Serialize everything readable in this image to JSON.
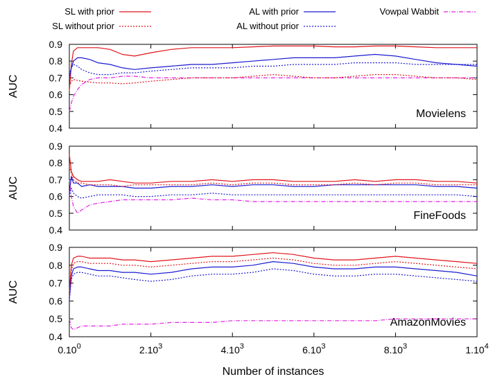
{
  "chart_data": {
    "type": "line",
    "xlabel": "Number of instances",
    "x_range": [
      0,
      10000
    ],
    "x_tick_values": [
      0,
      2000,
      4000,
      6000,
      8000,
      10000
    ],
    "x_tick_labels": [
      {
        "base": "0.10",
        "exp": "0"
      },
      {
        "base": "2.10",
        "exp": "3"
      },
      {
        "base": "4.10",
        "exp": "3"
      },
      {
        "base": "6.10",
        "exp": "3"
      },
      {
        "base": "8.10",
        "exp": "3"
      },
      {
        "base": "1.10",
        "exp": "4"
      }
    ],
    "ylabel": "AUC",
    "ylim": [
      0.4,
      0.9
    ],
    "y_ticks": [
      "0.4",
      "0.5",
      "0.6",
      "0.7",
      "0.8",
      "0.9"
    ],
    "legend": [
      {
        "name": "SL with prior",
        "color": "#e0141a",
        "dash": "solid"
      },
      {
        "name": "AL with prior",
        "color": "#1a1ad0",
        "dash": "solid"
      },
      {
        "name": "Vowpal Wabbit",
        "color": "#e020e0",
        "dash": "dashdot"
      },
      {
        "name": "SL without prior",
        "color": "#e0141a",
        "dash": "dotted"
      },
      {
        "name": "AL without prior",
        "color": "#1a1ad0",
        "dash": "dotted"
      }
    ],
    "x_points": [
      0,
      50,
      100,
      200,
      300,
      500,
      700,
      1000,
      1300,
      1600,
      2000,
      2500,
      3000,
      3500,
      4000,
      4500,
      5000,
      5500,
      6000,
      6500,
      7000,
      7500,
      8000,
      8500,
      9000,
      9500,
      10000
    ],
    "panels": [
      {
        "label": "Movielens",
        "series": [
          {
            "name": "SL with prior",
            "values": [
              0.62,
              0.78,
              0.86,
              0.88,
              0.88,
              0.88,
              0.88,
              0.87,
              0.84,
              0.83,
              0.85,
              0.87,
              0.88,
              0.88,
              0.88,
              0.885,
              0.89,
              0.89,
              0.89,
              0.885,
              0.885,
              0.89,
              0.89,
              0.885,
              0.88,
              0.88,
              0.88
            ]
          },
          {
            "name": "AL with prior",
            "values": [
              0.7,
              0.76,
              0.8,
              0.82,
              0.82,
              0.81,
              0.79,
              0.78,
              0.76,
              0.75,
              0.76,
              0.77,
              0.78,
              0.78,
              0.79,
              0.8,
              0.81,
              0.82,
              0.82,
              0.82,
              0.83,
              0.84,
              0.83,
              0.81,
              0.79,
              0.78,
              0.77
            ]
          },
          {
            "name": "Vowpal Wabbit",
            "values": [
              0.5,
              0.55,
              0.59,
              0.63,
              0.66,
              0.69,
              0.7,
              0.7,
              0.71,
              0.71,
              0.7,
              0.7,
              0.7,
              0.7,
              0.7,
              0.7,
              0.7,
              0.7,
              0.7,
              0.7,
              0.7,
              0.7,
              0.7,
              0.7,
              0.7,
              0.7,
              0.7
            ]
          },
          {
            "name": "SL without prior",
            "values": [
              0.65,
              0.68,
              0.69,
              0.685,
              0.68,
              0.675,
              0.67,
              0.67,
              0.665,
              0.67,
              0.68,
              0.69,
              0.7,
              0.7,
              0.7,
              0.71,
              0.72,
              0.71,
              0.7,
              0.7,
              0.71,
              0.72,
              0.72,
              0.71,
              0.7,
              0.7,
              0.69
            ]
          },
          {
            "name": "AL without prior",
            "values": [
              0.72,
              0.76,
              0.78,
              0.77,
              0.75,
              0.73,
              0.72,
              0.72,
              0.73,
              0.73,
              0.74,
              0.75,
              0.76,
              0.76,
              0.76,
              0.77,
              0.77,
              0.78,
              0.78,
              0.78,
              0.79,
              0.79,
              0.79,
              0.78,
              0.78,
              0.78,
              0.78
            ]
          }
        ]
      },
      {
        "label": "FineFoods",
        "series": [
          {
            "name": "SL with prior",
            "values": [
              0.85,
              0.75,
              0.72,
              0.7,
              0.69,
              0.69,
              0.69,
              0.7,
              0.69,
              0.68,
              0.68,
              0.69,
              0.69,
              0.7,
              0.69,
              0.7,
              0.7,
              0.69,
              0.69,
              0.69,
              0.7,
              0.69,
              0.7,
              0.7,
              0.69,
              0.69,
              0.68
            ]
          },
          {
            "name": "AL with prior",
            "values": [
              0.62,
              0.72,
              0.68,
              0.68,
              0.66,
              0.67,
              0.66,
              0.66,
              0.66,
              0.65,
              0.65,
              0.66,
              0.66,
              0.67,
              0.66,
              0.67,
              0.67,
              0.66,
              0.66,
              0.67,
              0.67,
              0.67,
              0.67,
              0.67,
              0.66,
              0.66,
              0.65
            ]
          },
          {
            "name": "Vowpal Wabbit",
            "values": [
              0.7,
              0.6,
              0.54,
              0.5,
              0.52,
              0.55,
              0.56,
              0.57,
              0.58,
              0.58,
              0.58,
              0.58,
              0.59,
              0.58,
              0.58,
              0.57,
              0.57,
              0.57,
              0.57,
              0.57,
              0.57,
              0.57,
              0.57,
              0.57,
              0.57,
              0.57,
              0.57
            ]
          },
          {
            "name": "SL without prior",
            "values": [
              0.78,
              0.74,
              0.7,
              0.68,
              0.68,
              0.67,
              0.67,
              0.67,
              0.66,
              0.67,
              0.67,
              0.67,
              0.67,
              0.68,
              0.67,
              0.68,
              0.68,
              0.67,
              0.67,
              0.67,
              0.68,
              0.67,
              0.68,
              0.68,
              0.67,
              0.67,
              0.67
            ]
          },
          {
            "name": "AL without prior",
            "values": [
              0.6,
              0.65,
              0.62,
              0.6,
              0.59,
              0.6,
              0.61,
              0.61,
              0.61,
              0.6,
              0.6,
              0.61,
              0.61,
              0.62,
              0.61,
              0.61,
              0.61,
              0.61,
              0.61,
              0.61,
              0.61,
              0.61,
              0.61,
              0.61,
              0.61,
              0.61,
              0.6
            ]
          }
        ]
      },
      {
        "label": "AmazonMovies",
        "series": [
          {
            "name": "SL with prior",
            "values": [
              0.65,
              0.8,
              0.84,
              0.85,
              0.85,
              0.84,
              0.84,
              0.84,
              0.83,
              0.83,
              0.82,
              0.83,
              0.84,
              0.85,
              0.85,
              0.86,
              0.87,
              0.86,
              0.84,
              0.83,
              0.83,
              0.84,
              0.85,
              0.84,
              0.83,
              0.82,
              0.81
            ]
          },
          {
            "name": "AL with prior",
            "values": [
              0.62,
              0.74,
              0.78,
              0.79,
              0.79,
              0.78,
              0.77,
              0.77,
              0.76,
              0.76,
              0.75,
              0.76,
              0.78,
              0.79,
              0.79,
              0.8,
              0.82,
              0.81,
              0.79,
              0.78,
              0.78,
              0.79,
              0.79,
              0.78,
              0.77,
              0.76,
              0.74
            ]
          },
          {
            "name": "Vowpal Wabbit",
            "values": [
              0.5,
              0.45,
              0.44,
              0.45,
              0.46,
              0.46,
              0.46,
              0.46,
              0.47,
              0.47,
              0.47,
              0.48,
              0.48,
              0.48,
              0.49,
              0.49,
              0.49,
              0.49,
              0.49,
              0.49,
              0.49,
              0.49,
              0.5,
              0.5,
              0.5,
              0.5,
              0.5
            ]
          },
          {
            "name": "SL without prior",
            "values": [
              0.63,
              0.77,
              0.81,
              0.82,
              0.82,
              0.81,
              0.81,
              0.81,
              0.8,
              0.8,
              0.79,
              0.8,
              0.81,
              0.82,
              0.82,
              0.83,
              0.84,
              0.83,
              0.81,
              0.8,
              0.8,
              0.81,
              0.82,
              0.81,
              0.8,
              0.79,
              0.78
            ]
          },
          {
            "name": "AL without prior",
            "values": [
              0.6,
              0.72,
              0.75,
              0.76,
              0.76,
              0.75,
              0.74,
              0.74,
              0.73,
              0.72,
              0.71,
              0.72,
              0.74,
              0.75,
              0.75,
              0.76,
              0.78,
              0.77,
              0.75,
              0.74,
              0.74,
              0.75,
              0.75,
              0.74,
              0.73,
              0.72,
              0.71
            ]
          }
        ]
      }
    ]
  }
}
